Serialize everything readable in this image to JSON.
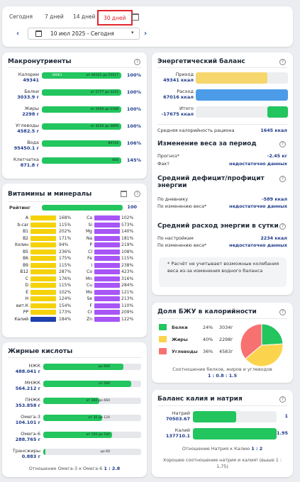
{
  "period": {
    "tabs": [
      "Сегодня",
      "7 дней",
      "14 дней",
      "30 дней"
    ],
    "active": "30 дней",
    "date_range": "10 июл 2025 - Сегодня"
  },
  "macro": {
    "title": "Макронутриенты",
    "items": [
      {
        "name": "Калории",
        "value": "49341",
        "left": "39061",
        "right": "от 46321 до 53517",
        "pct": "100%",
        "fill": 1.0
      },
      {
        "name": "Белки",
        "value": "3033.9 г",
        "left": "",
        "right": "от 2777 до 3215",
        "pct": "100%",
        "fill": 1.0
      },
      {
        "name": "Жиры",
        "value": "2298 г",
        "left": "",
        "right": "от 2040 до 2348",
        "pct": "100%",
        "fill": 1.0
      },
      {
        "name": "Углеводы",
        "value": "4582.5 г",
        "left": "",
        "right": "от 4240 до 4899",
        "pct": "100%",
        "fill": 1.0
      },
      {
        "name": "Вода",
        "value": "95450.1 г",
        "left": "",
        "right": "89744",
        "pct": "106%",
        "fill": 1.0
      },
      {
        "name": "Клетчатка",
        "value": "871.8 г",
        "left": "",
        "right": "600",
        "pct": "145%",
        "fill": 1.0
      }
    ]
  },
  "vitamins": {
    "title": "Витамины и минералы",
    "rating_label": "Рейтинг",
    "rating": "100",
    "rating_fill": 1.0,
    "left": [
      [
        "A",
        "168%"
      ],
      [
        "b-car",
        "115%"
      ],
      [
        "B1",
        "202%"
      ],
      [
        "B2",
        "171%"
      ],
      [
        "Холин",
        "94%"
      ],
      [
        "B5",
        "236%"
      ],
      [
        "B6",
        "175%"
      ],
      [
        "B9",
        "115%"
      ],
      [
        "B12",
        "287%"
      ],
      [
        "C",
        "176%"
      ],
      [
        "D",
        "115%"
      ],
      [
        "E",
        "102%"
      ],
      [
        "H",
        "124%"
      ],
      [
        "вит.К",
        "154%"
      ],
      [
        "PP",
        "173%"
      ],
      [
        "Калий",
        "184%"
      ]
    ],
    "right": [
      [
        "Ca",
        "102%"
      ],
      [
        "Si",
        "573%"
      ],
      [
        "Mg",
        "140%"
      ],
      [
        "Na",
        "181%"
      ],
      [
        "P",
        "219%"
      ],
      [
        "Cl",
        "108%"
      ],
      [
        "Fe",
        "115%"
      ],
      [
        "I",
        "238%"
      ],
      [
        "Co",
        "423%"
      ],
      [
        "Mn",
        "316%"
      ],
      [
        "Cu",
        "284%"
      ],
      [
        "Mo",
        "121%"
      ],
      [
        "Se",
        "213%"
      ],
      [
        "F",
        "110%"
      ],
      [
        "Cr",
        "209%"
      ],
      [
        "Zn",
        "122%"
      ]
    ],
    "colors": {
      "left": "#f5d20a",
      "right": "#a855f7",
      "last_left": "#1e40af",
      "last_right": "#a855f7"
    }
  },
  "fatty": {
    "title": "Жирные кислоты",
    "items": [
      {
        "name": "НЖК",
        "value": "488.041 г",
        "right": "до 600",
        "fill": 0.82
      },
      {
        "name": "МНЖК",
        "value": "564.212 г",
        "right": "от 540",
        "fill": 0.9
      },
      {
        "name": "ПНЖК",
        "value": "353.858 г",
        "right": "от 360 до 660",
        "fill": 0.57
      },
      {
        "name": "Омега-3",
        "value": "104.101 г",
        "right": "от 30 до 120",
        "fill": 0.6
      },
      {
        "name": "Омега-6",
        "value": "288.765 г",
        "right": "от 150 до 540",
        "fill": 0.7
      },
      {
        "name": "Трансжиры",
        "value": "0.883 г",
        "right": "до 60",
        "fill": 0.02
      }
    ],
    "footer": "Отношение Омега-3 к Омега-6",
    "ratio": "1 : 2.8"
  },
  "energy": {
    "title": "Энергетический баланс",
    "rows": [
      {
        "name": "Приход",
        "value": "49341 ккал",
        "color": "#f5d76e",
        "fill": 0.78
      },
      {
        "name": "Расход",
        "value": "67016 ккал",
        "color": "#4c9be8",
        "fill": 1.0
      },
      {
        "name": "Итого",
        "value": "-17675 ккал",
        "color": "#22c55e",
        "fill": 0.22
      }
    ],
    "avg_label": "Средняя калорийность рациона",
    "avg_value": "1645 ккал",
    "weight_title": "Изменение веса за период",
    "forecast_label": "Прогноз*",
    "forecast_value": "-2.45 кг",
    "fact_label": "Факт",
    "fact_value": "недостаточно данных",
    "deficit_title": "Средний дефицит/профицит энергии",
    "diary_label": "По дневнику",
    "diary_value": "-589 ккал",
    "weight_change_label": "По изменению веса*",
    "weight_change_value": "недостаточно данных",
    "expense_title": "Средний расход энергии в сутки",
    "settings_label": "По настройкам",
    "settings_value": "2234 ккал",
    "weight_change2_label": "По изменению веса*",
    "weight_change2_value": "недостаточно данных",
    "note": "* Расчёт не учитывает возможные колебания веса из-за изменения водного баланса"
  },
  "bju": {
    "title": "Доля БЖУ в калорийности",
    "items": [
      {
        "name": "Белки",
        "pct": "24%",
        "grams": "3034г",
        "color": "#22c55e",
        "share": 0.24
      },
      {
        "name": "Жиры",
        "pct": "40%",
        "grams": "2298г",
        "color": "#fcd34d",
        "share": 0.4
      },
      {
        "name": "Углеводы",
        "pct": "36%",
        "grams": "4583г",
        "color": "#f87171",
        "share": 0.36
      }
    ],
    "footer": "Соотношение белков, жиров и углеводов",
    "ratio": "1 : 0.8 : 1.5"
  },
  "kna": {
    "title": "Баланс калия и натрия",
    "items": [
      {
        "name": "Натрий",
        "value": "70503.67",
        "ratio": "1",
        "fill": 0.52
      },
      {
        "name": "Калий",
        "value": "137710.1",
        "ratio": "1.95",
        "fill": 1.0
      }
    ],
    "ratio_text": "Отношение Натрия к Калию",
    "ratio_value": "1 : 2",
    "good_text": "Хорошее соотношение натрия и калия! (выше 1 : 1,75)"
  }
}
